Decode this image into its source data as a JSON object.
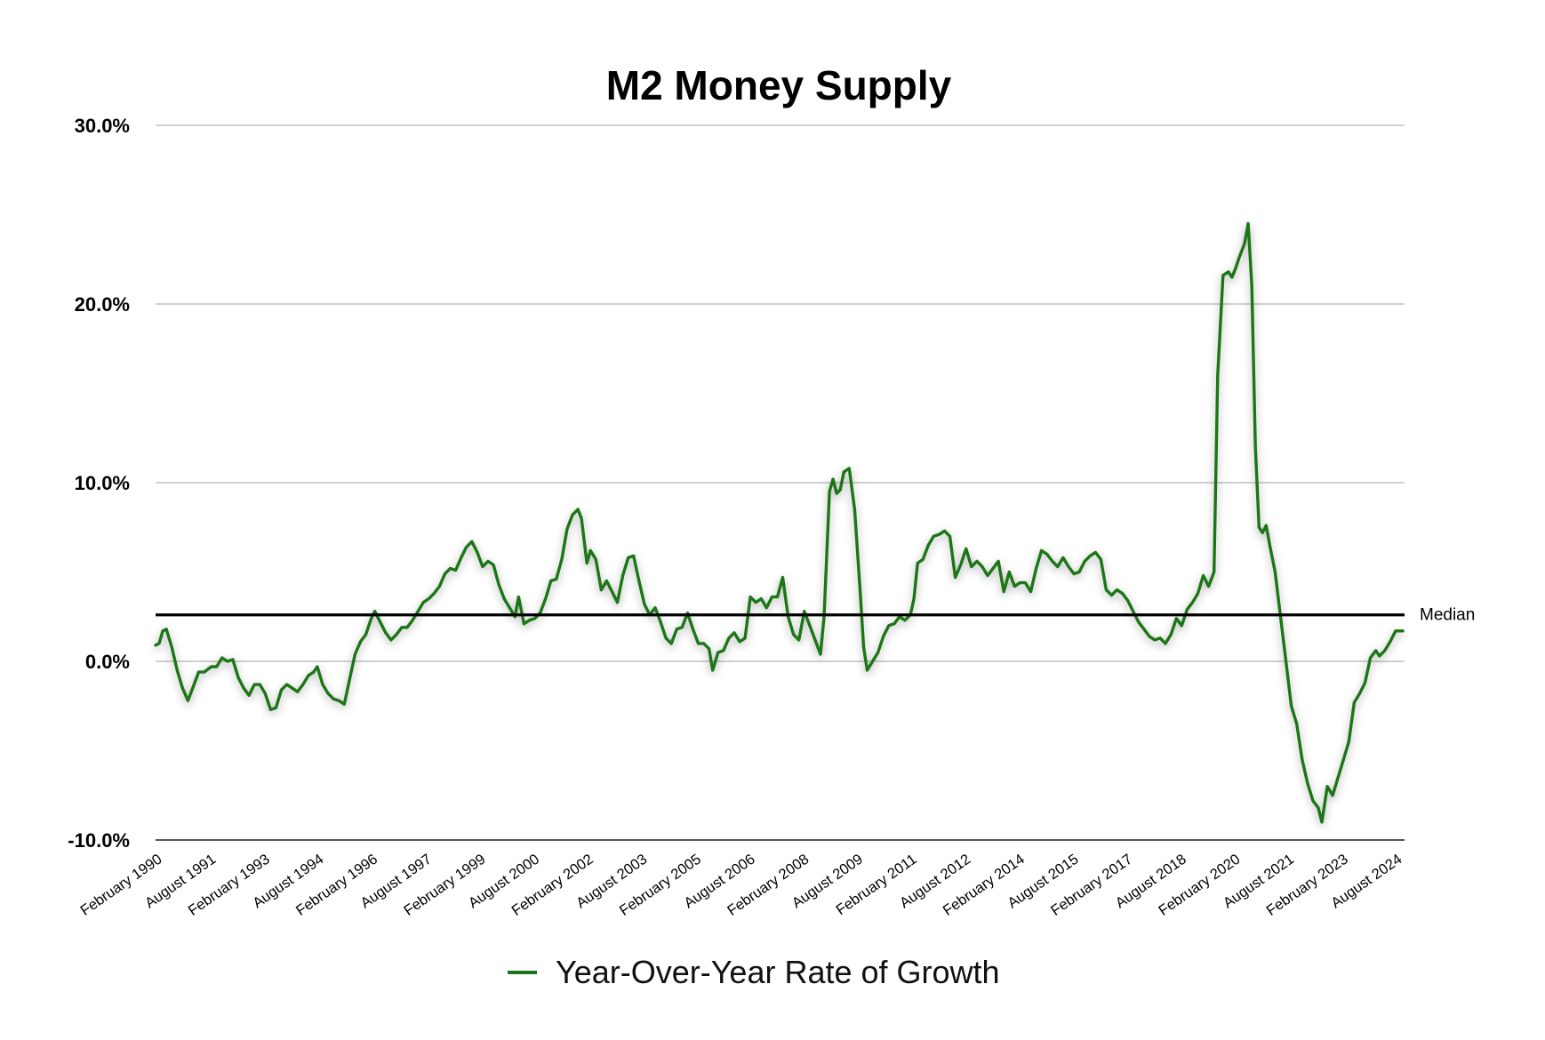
{
  "chart_data": {
    "type": "line",
    "title": "M2 Money Supply",
    "xlabel": "",
    "ylabel": "",
    "ylim": [
      -10,
      30
    ],
    "y_ticks": [
      {
        "value": 30,
        "label": "30.0%"
      },
      {
        "value": 20,
        "label": "20.0%"
      },
      {
        "value": 10,
        "label": "10.0%"
      },
      {
        "value": 0,
        "label": "0.0%"
      },
      {
        "value": -10,
        "label": "-10.0%"
      }
    ],
    "x_range": [
      1990.0,
      2024.75
    ],
    "x_ticks": [
      {
        "t": 1990.08,
        "label": "February 1990"
      },
      {
        "t": 1991.58,
        "label": "August 1991"
      },
      {
        "t": 1993.08,
        "label": "February 1993"
      },
      {
        "t": 1994.58,
        "label": "August 1994"
      },
      {
        "t": 1996.08,
        "label": "February 1996"
      },
      {
        "t": 1997.58,
        "label": "August 1997"
      },
      {
        "t": 1999.08,
        "label": "February 1999"
      },
      {
        "t": 2000.58,
        "label": "August 2000"
      },
      {
        "t": 2002.08,
        "label": "February 2002"
      },
      {
        "t": 2003.58,
        "label": "August 2003"
      },
      {
        "t": 2005.08,
        "label": "February 2005"
      },
      {
        "t": 2006.58,
        "label": "August 2006"
      },
      {
        "t": 2008.08,
        "label": "February 2008"
      },
      {
        "t": 2009.58,
        "label": "August 2009"
      },
      {
        "t": 2011.08,
        "label": "February 2011"
      },
      {
        "t": 2012.58,
        "label": "August 2012"
      },
      {
        "t": 2014.08,
        "label": "February 2014"
      },
      {
        "t": 2015.58,
        "label": "August 2015"
      },
      {
        "t": 2017.08,
        "label": "February 2017"
      },
      {
        "t": 2018.58,
        "label": "August 2018"
      },
      {
        "t": 2020.08,
        "label": "February 2020"
      },
      {
        "t": 2021.58,
        "label": "August 2021"
      },
      {
        "t": 2023.08,
        "label": "February 2023"
      },
      {
        "t": 2024.58,
        "label": "August 2024"
      }
    ],
    "median": {
      "value": 2.6,
      "label": "Median"
    },
    "series": [
      {
        "name": "Year-Over-Year Rate of Growth",
        "color": "#1a7518",
        "points": [
          [
            1990.0,
            0.9
          ],
          [
            1990.1,
            1.0
          ],
          [
            1990.2,
            1.7
          ],
          [
            1990.3,
            1.8
          ],
          [
            1990.45,
            0.8
          ],
          [
            1990.6,
            -0.5
          ],
          [
            1990.75,
            -1.5
          ],
          [
            1990.9,
            -2.2
          ],
          [
            1991.05,
            -1.4
          ],
          [
            1991.2,
            -0.6
          ],
          [
            1991.35,
            -0.6
          ],
          [
            1991.55,
            -0.3
          ],
          [
            1991.7,
            -0.3
          ],
          [
            1991.85,
            0.2
          ],
          [
            1992.0,
            0.0
          ],
          [
            1992.15,
            0.1
          ],
          [
            1992.3,
            -0.9
          ],
          [
            1992.45,
            -1.5
          ],
          [
            1992.6,
            -1.9
          ],
          [
            1992.75,
            -1.3
          ],
          [
            1992.9,
            -1.3
          ],
          [
            1993.05,
            -1.8
          ],
          [
            1993.2,
            -2.7
          ],
          [
            1993.35,
            -2.6
          ],
          [
            1993.5,
            -1.6
          ],
          [
            1993.65,
            -1.3
          ],
          [
            1993.8,
            -1.5
          ],
          [
            1993.95,
            -1.7
          ],
          [
            1994.1,
            -1.3
          ],
          [
            1994.25,
            -0.8
          ],
          [
            1994.4,
            -0.6
          ],
          [
            1994.5,
            -0.3
          ],
          [
            1994.65,
            -1.3
          ],
          [
            1994.8,
            -1.8
          ],
          [
            1994.95,
            -2.1
          ],
          [
            1995.1,
            -2.2
          ],
          [
            1995.25,
            -2.4
          ],
          [
            1995.4,
            -1.0
          ],
          [
            1995.55,
            0.4
          ],
          [
            1995.7,
            1.1
          ],
          [
            1995.85,
            1.5
          ],
          [
            1996.0,
            2.4
          ],
          [
            1996.1,
            2.8
          ],
          [
            1996.25,
            2.2
          ],
          [
            1996.4,
            1.6
          ],
          [
            1996.55,
            1.2
          ],
          [
            1996.7,
            1.5
          ],
          [
            1996.85,
            1.9
          ],
          [
            1997.0,
            1.9
          ],
          [
            1997.15,
            2.3
          ],
          [
            1997.3,
            2.8
          ],
          [
            1997.45,
            3.3
          ],
          [
            1997.6,
            3.5
          ],
          [
            1997.75,
            3.8
          ],
          [
            1997.9,
            4.2
          ],
          [
            1998.05,
            4.9
          ],
          [
            1998.2,
            5.2
          ],
          [
            1998.35,
            5.1
          ],
          [
            1998.5,
            5.8
          ],
          [
            1998.65,
            6.4
          ],
          [
            1998.8,
            6.7
          ],
          [
            1998.95,
            6.1
          ],
          [
            1999.1,
            5.3
          ],
          [
            1999.25,
            5.6
          ],
          [
            1999.4,
            5.4
          ],
          [
            1999.55,
            4.3
          ],
          [
            1999.7,
            3.5
          ],
          [
            1999.85,
            3.0
          ],
          [
            2000.0,
            2.5
          ],
          [
            2000.1,
            3.6
          ],
          [
            2000.25,
            2.1
          ],
          [
            2000.4,
            2.3
          ],
          [
            2000.55,
            2.4
          ],
          [
            2000.7,
            2.7
          ],
          [
            2000.85,
            3.5
          ],
          [
            2001.0,
            4.5
          ],
          [
            2001.15,
            4.6
          ],
          [
            2001.3,
            5.7
          ],
          [
            2001.45,
            7.4
          ],
          [
            2001.6,
            8.2
          ],
          [
            2001.75,
            8.5
          ],
          [
            2001.85,
            8.0
          ],
          [
            2002.0,
            5.5
          ],
          [
            2002.1,
            6.2
          ],
          [
            2002.25,
            5.7
          ],
          [
            2002.4,
            4.0
          ],
          [
            2002.55,
            4.5
          ],
          [
            2002.7,
            3.9
          ],
          [
            2002.85,
            3.3
          ],
          [
            2003.0,
            4.8
          ],
          [
            2003.15,
            5.8
          ],
          [
            2003.3,
            5.9
          ],
          [
            2003.45,
            4.5
          ],
          [
            2003.6,
            3.2
          ],
          [
            2003.75,
            2.6
          ],
          [
            2003.9,
            3.0
          ],
          [
            2004.05,
            2.2
          ],
          [
            2004.2,
            1.3
          ],
          [
            2004.35,
            1.0
          ],
          [
            2004.5,
            1.8
          ],
          [
            2004.65,
            1.9
          ],
          [
            2004.8,
            2.7
          ],
          [
            2004.95,
            1.8
          ],
          [
            2005.1,
            1.0
          ],
          [
            2005.25,
            1.0
          ],
          [
            2005.4,
            0.7
          ],
          [
            2005.5,
            -0.5
          ],
          [
            2005.65,
            0.5
          ],
          [
            2005.8,
            0.6
          ],
          [
            2005.95,
            1.3
          ],
          [
            2006.1,
            1.6
          ],
          [
            2006.25,
            1.1
          ],
          [
            2006.4,
            1.3
          ],
          [
            2006.55,
            3.6
          ],
          [
            2006.7,
            3.3
          ],
          [
            2006.85,
            3.5
          ],
          [
            2007.0,
            3.0
          ],
          [
            2007.15,
            3.6
          ],
          [
            2007.3,
            3.6
          ],
          [
            2007.45,
            4.7
          ],
          [
            2007.6,
            2.5
          ],
          [
            2007.75,
            1.5
          ],
          [
            2007.9,
            1.2
          ],
          [
            2008.05,
            2.8
          ],
          [
            2008.2,
            2.0
          ],
          [
            2008.35,
            1.2
          ],
          [
            2008.5,
            0.4
          ],
          [
            2008.6,
            2.5
          ],
          [
            2008.75,
            9.5
          ],
          [
            2008.85,
            10.2
          ],
          [
            2008.95,
            9.4
          ],
          [
            2009.05,
            9.6
          ],
          [
            2009.15,
            10.6
          ],
          [
            2009.3,
            10.8
          ],
          [
            2009.45,
            8.5
          ],
          [
            2009.6,
            4.0
          ],
          [
            2009.7,
            0.8
          ],
          [
            2009.8,
            -0.5
          ],
          [
            2009.95,
            0.0
          ],
          [
            2010.1,
            0.5
          ],
          [
            2010.25,
            1.4
          ],
          [
            2010.4,
            2.0
          ],
          [
            2010.55,
            2.1
          ],
          [
            2010.7,
            2.5
          ],
          [
            2010.85,
            2.3
          ],
          [
            2011.0,
            2.6
          ],
          [
            2011.1,
            3.5
          ],
          [
            2011.2,
            5.5
          ],
          [
            2011.35,
            5.7
          ],
          [
            2011.5,
            6.5
          ],
          [
            2011.65,
            7.0
          ],
          [
            2011.8,
            7.1
          ],
          [
            2011.95,
            7.3
          ],
          [
            2012.1,
            7.0
          ],
          [
            2012.25,
            4.7
          ],
          [
            2012.4,
            5.4
          ],
          [
            2012.55,
            6.3
          ],
          [
            2012.7,
            5.3
          ],
          [
            2012.85,
            5.6
          ],
          [
            2013.0,
            5.3
          ],
          [
            2013.15,
            4.8
          ],
          [
            2013.3,
            5.2
          ],
          [
            2013.45,
            5.6
          ],
          [
            2013.6,
            3.9
          ],
          [
            2013.75,
            5.0
          ],
          [
            2013.9,
            4.2
          ],
          [
            2014.05,
            4.4
          ],
          [
            2014.2,
            4.4
          ],
          [
            2014.35,
            3.9
          ],
          [
            2014.5,
            5.2
          ],
          [
            2014.65,
            6.2
          ],
          [
            2014.8,
            6.0
          ],
          [
            2014.95,
            5.6
          ],
          [
            2015.1,
            5.3
          ],
          [
            2015.25,
            5.8
          ],
          [
            2015.4,
            5.3
          ],
          [
            2015.55,
            4.9
          ],
          [
            2015.7,
            5.0
          ],
          [
            2015.85,
            5.6
          ],
          [
            2016.0,
            5.9
          ],
          [
            2016.15,
            6.1
          ],
          [
            2016.3,
            5.7
          ],
          [
            2016.45,
            4.0
          ],
          [
            2016.6,
            3.7
          ],
          [
            2016.75,
            4.0
          ],
          [
            2016.9,
            3.8
          ],
          [
            2017.05,
            3.4
          ],
          [
            2017.2,
            2.8
          ],
          [
            2017.35,
            2.2
          ],
          [
            2017.5,
            1.8
          ],
          [
            2017.65,
            1.4
          ],
          [
            2017.8,
            1.2
          ],
          [
            2017.95,
            1.3
          ],
          [
            2018.1,
            1.0
          ],
          [
            2018.25,
            1.5
          ],
          [
            2018.4,
            2.4
          ],
          [
            2018.55,
            2.0
          ],
          [
            2018.7,
            2.9
          ],
          [
            2018.85,
            3.3
          ],
          [
            2019.0,
            3.8
          ],
          [
            2019.15,
            4.8
          ],
          [
            2019.3,
            4.2
          ],
          [
            2019.45,
            5.0
          ],
          [
            2019.55,
            16.0
          ],
          [
            2019.7,
            21.6
          ],
          [
            2019.85,
            21.8
          ],
          [
            2019.95,
            21.5
          ],
          [
            2020.05,
            22.0
          ],
          [
            2020.15,
            22.6
          ],
          [
            2020.3,
            23.4
          ],
          [
            2020.4,
            24.5
          ],
          [
            2020.5,
            21.0
          ],
          [
            2020.6,
            12.0
          ],
          [
            2020.7,
            7.5
          ],
          [
            2020.8,
            7.2
          ],
          [
            2020.9,
            7.6
          ],
          [
            2021.0,
            6.5
          ],
          [
            2021.15,
            5.0
          ],
          [
            2021.3,
            2.5
          ],
          [
            2021.45,
            0.0
          ],
          [
            2021.6,
            -2.5
          ],
          [
            2021.75,
            -3.5
          ],
          [
            2021.9,
            -5.5
          ],
          [
            2022.05,
            -6.8
          ],
          [
            2022.2,
            -7.8
          ],
          [
            2022.35,
            -8.2
          ],
          [
            2022.45,
            -9.0
          ],
          [
            2022.6,
            -7.0
          ],
          [
            2022.75,
            -7.5
          ],
          [
            2022.9,
            -6.5
          ],
          [
            2023.05,
            -5.5
          ],
          [
            2023.2,
            -4.5
          ],
          [
            2023.35,
            -2.3
          ],
          [
            2023.5,
            -1.8
          ],
          [
            2023.65,
            -1.2
          ],
          [
            2023.8,
            0.2
          ],
          [
            2023.95,
            0.6
          ],
          [
            2024.05,
            0.3
          ],
          [
            2024.2,
            0.6
          ],
          [
            2024.35,
            1.1
          ],
          [
            2024.5,
            1.7
          ],
          [
            2024.7,
            1.7
          ]
        ]
      }
    ],
    "legend": {
      "position": "bottom-center",
      "label": "Year-Over-Year Rate of Growth"
    }
  }
}
